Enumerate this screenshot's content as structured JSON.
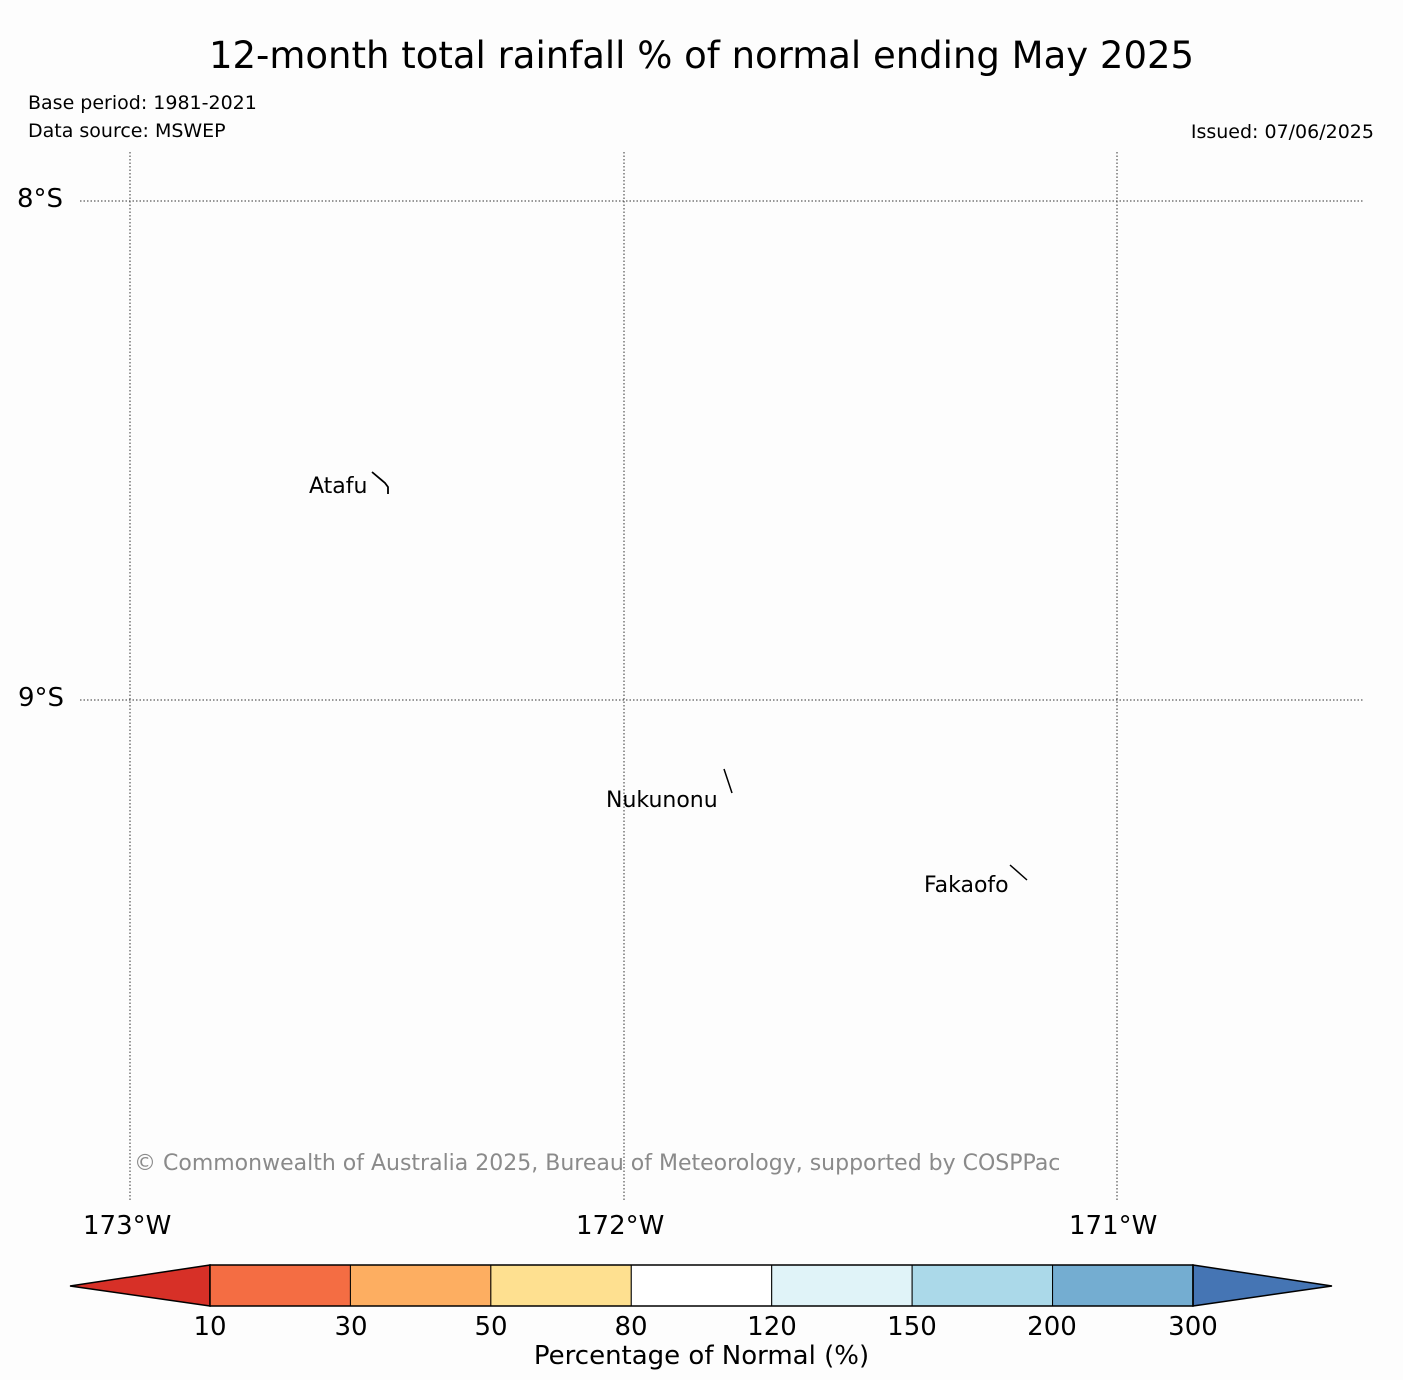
{
  "header": {
    "title": "12-month total rainfall % of normal ending May 2025",
    "base_period": "Base period: 1981-2021",
    "data_source": "Data source: MSWEP",
    "issued": "Issued: 07/06/2025"
  },
  "map": {
    "latitudes": [
      "8°S",
      "9°S"
    ],
    "longitudes": [
      "173°W",
      "172°W",
      "171°W"
    ],
    "gridlines": "dotted",
    "places": [
      {
        "name": "Atafu",
        "icon": "atoll-outline-icon"
      },
      {
        "name": "Nukunonu",
        "icon": "atoll-outline-icon"
      },
      {
        "name": "Fakaofo",
        "icon": "atoll-outline-icon"
      }
    ],
    "copyright": "© Commonwealth of Australia 2025, Bureau of Meteorology, supported by COSPPac"
  },
  "colorbar": {
    "title": "Percentage of Normal (%)",
    "ticks": [
      "10",
      "30",
      "50",
      "80",
      "120",
      "150",
      "200",
      "300"
    ],
    "under_color": "#d73027",
    "over_color": "#4575b4",
    "bin_colors": [
      "#f46d43",
      "#fdae61",
      "#fee090",
      "#ffffff",
      "#e0f3f8",
      "#abd9e9",
      "#74add1"
    ]
  }
}
